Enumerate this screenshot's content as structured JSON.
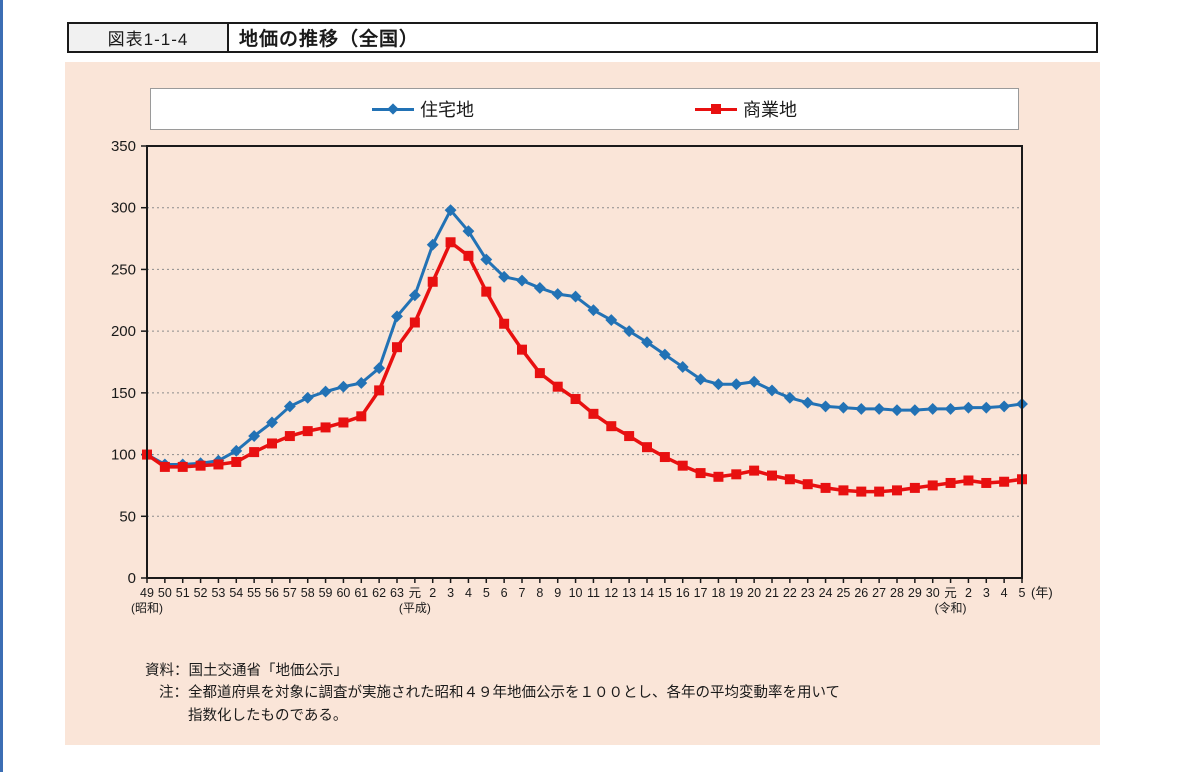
{
  "page": {
    "accent_color": "#3c6eb4",
    "panel_background": "#fae5d8"
  },
  "header": {
    "figure_label": "図表1-1-4",
    "title": "地価の推移（全国）"
  },
  "notes": {
    "source": "資料：国土交通省「地価公示」",
    "note_label": "注：",
    "note_line1": "全都道府県を対象に調査が実施された昭和４９年地価公示を１００とし、各年の平均変動率を用いて",
    "note_line2": "指数化したものである。"
  },
  "chart_data": {
    "type": "line",
    "title": "地価の推移（全国）",
    "ylim": [
      0,
      350
    ],
    "ytick_interval": 50,
    "grid": "horizontal-dashed",
    "legend_position": "top",
    "x_axis_suffix": "(年)",
    "x_tick_labels": [
      "49",
      "50",
      "51",
      "52",
      "53",
      "54",
      "55",
      "56",
      "57",
      "58",
      "59",
      "60",
      "61",
      "62",
      "63",
      "元",
      "2",
      "3",
      "4",
      "5",
      "6",
      "7",
      "8",
      "9",
      "10",
      "11",
      "12",
      "13",
      "14",
      "15",
      "16",
      "17",
      "18",
      "19",
      "20",
      "21",
      "22",
      "23",
      "24",
      "25",
      "26",
      "27",
      "28",
      "29",
      "30",
      "元",
      "2",
      "3",
      "4",
      "5"
    ],
    "era_annotations": [
      {
        "index": 0,
        "label": "(昭和)"
      },
      {
        "index": 15,
        "label": "(平成)"
      },
      {
        "index": 45,
        "label": "(令和)"
      }
    ],
    "series": [
      {
        "name": "住宅地",
        "color": "#2272b5",
        "marker": "diamond",
        "line_width": 3,
        "values": [
          100,
          92,
          92,
          93,
          95,
          103,
          115,
          126,
          139,
          146,
          151,
          155,
          158,
          170,
          212,
          229,
          270,
          298,
          281,
          258,
          244,
          241,
          235,
          230,
          228,
          217,
          209,
          200,
          191,
          181,
          171,
          161,
          157,
          157,
          159,
          152,
          146,
          142,
          139,
          138,
          137,
          137,
          136,
          136,
          137,
          137,
          138,
          138,
          139,
          141
        ]
      },
      {
        "name": "商業地",
        "color": "#e81010",
        "marker": "square",
        "line_width": 3.5,
        "values": [
          100,
          90,
          90,
          91,
          92,
          94,
          102,
          109,
          115,
          119,
          122,
          126,
          131,
          152,
          187,
          207,
          240,
          272,
          261,
          232,
          206,
          185,
          166,
          155,
          145,
          133,
          123,
          115,
          106,
          98,
          91,
          85,
          82,
          84,
          87,
          83,
          80,
          76,
          73,
          71,
          70,
          70,
          71,
          73,
          75,
          77,
          79,
          77,
          78,
          80
        ]
      }
    ]
  }
}
